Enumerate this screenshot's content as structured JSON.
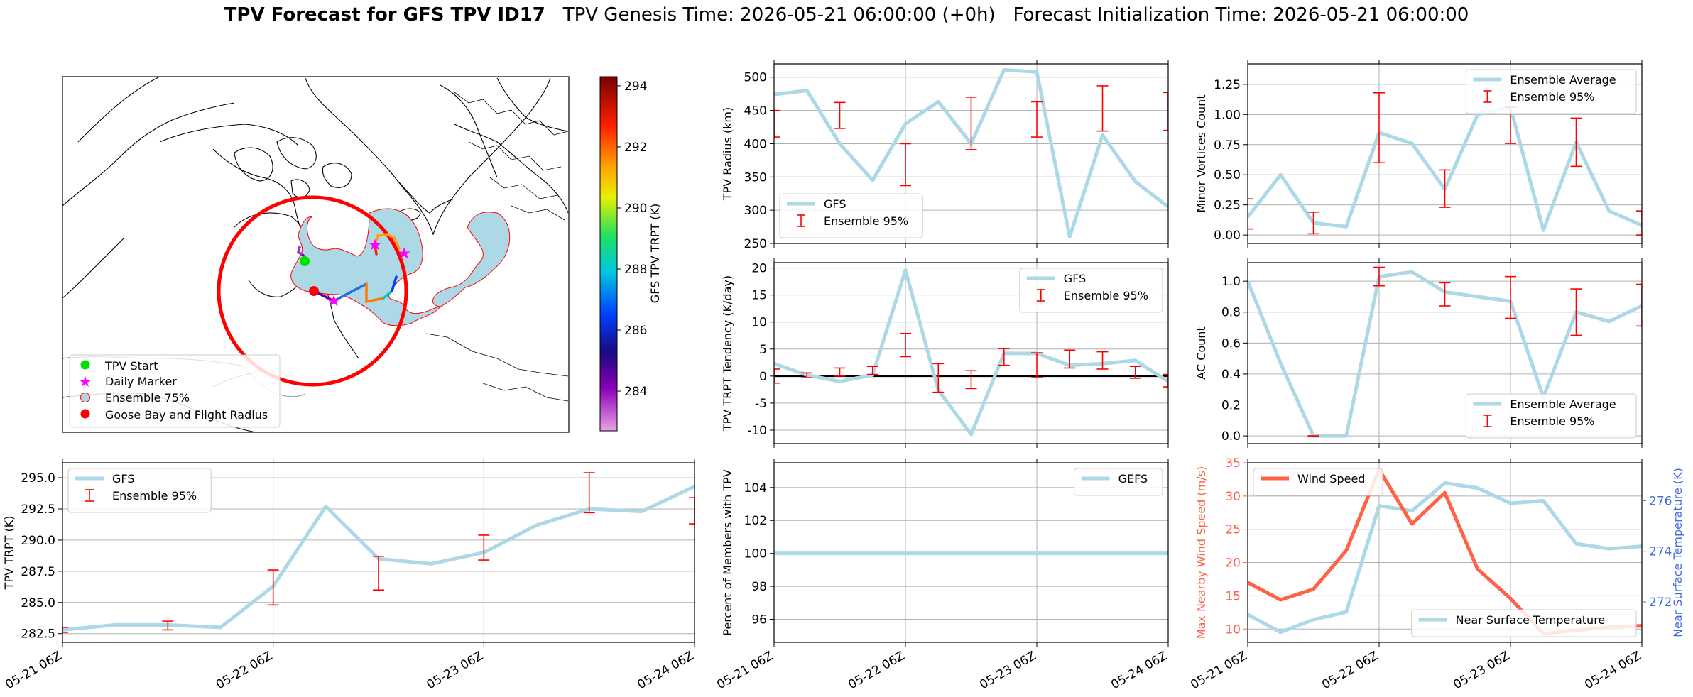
{
  "header": {
    "title_bold": "TPV Forecast for GFS TPV ID17",
    "genesis": "TPV Genesis Time: 2026-05-21 06:00:00 (+0h)",
    "init": "Forecast Initialization Time: 2026-05-21 06:00:00"
  },
  "colors": {
    "gfs": "#add8e6",
    "ensemble": "#ff0000",
    "wind": "#ff6347",
    "temp_axis": "#4169e1"
  },
  "map": {
    "legend": [
      "TPV Start",
      "Daily Marker",
      "Ensemble 75%",
      "Goose Bay and Flight Radius"
    ],
    "colorbar": {
      "label": "GFS TPV TRPT (K)",
      "ticks": [
        284,
        286,
        288,
        290,
        292,
        294
      ],
      "range": [
        282.7,
        294.3
      ]
    }
  },
  "x_ticks": [
    "05-21 06Z",
    "05-22 06Z",
    "05-23 06Z",
    "05-24 06Z"
  ],
  "chart_data": [
    {
      "id": "radius",
      "type": "line",
      "ylabel": "TPV Radius (km)",
      "ylim": [
        250,
        520
      ],
      "yticks": [
        250,
        300,
        350,
        400,
        450,
        500
      ],
      "legend": "lower-left",
      "legend_labels": [
        "GFS",
        "Ensemble 95%"
      ],
      "x": [
        0,
        0.25,
        0.5,
        0.75,
        1.0,
        1.25,
        1.5,
        1.75,
        2.0,
        2.25,
        2.5,
        2.75,
        3.0
      ],
      "series": [
        {
          "name": "GFS",
          "values": [
            474,
            480,
            400,
            345,
            430,
            463,
            400,
            511,
            508,
            260,
            413,
            343,
            305
          ]
        }
      ],
      "errorbars": [
        {
          "x": 0.0,
          "lo": 410,
          "hi": 450
        },
        {
          "x": 0.5,
          "lo": 423,
          "hi": 462
        },
        {
          "x": 1.0,
          "lo": 337,
          "hi": 400
        },
        {
          "x": 1.5,
          "lo": 391,
          "hi": 470
        },
        {
          "x": 2.0,
          "lo": 410,
          "hi": 463
        },
        {
          "x": 2.5,
          "lo": 419,
          "hi": 487
        },
        {
          "x": 3.0,
          "lo": 420,
          "hi": 477
        }
      ]
    },
    {
      "id": "minor",
      "type": "line",
      "ylabel": "Minor Vortices Count",
      "ylim": [
        -0.07,
        1.42
      ],
      "yticks": [
        0.0,
        0.25,
        0.5,
        0.75,
        1.0,
        1.25
      ],
      "legend": "upper-right",
      "legend_labels": [
        "Ensemble Average",
        "Ensemble 95%"
      ],
      "x": [
        0,
        0.25,
        0.5,
        0.75,
        1.0,
        1.25,
        1.5,
        1.75,
        2.0,
        2.25,
        2.5,
        2.75,
        3.0
      ],
      "series": [
        {
          "name": "Ensemble Average",
          "values": [
            0.15,
            0.5,
            0.1,
            0.07,
            0.85,
            0.76,
            0.38,
            1.0,
            1.06,
            0.04,
            0.77,
            0.2,
            0.08
          ]
        }
      ],
      "errorbars": [
        {
          "x": 0.0,
          "lo": 0.05,
          "hi": 0.3
        },
        {
          "x": 0.5,
          "lo": 0.01,
          "hi": 0.19
        },
        {
          "x": 1.0,
          "lo": 0.6,
          "hi": 1.18
        },
        {
          "x": 1.5,
          "lo": 0.23,
          "hi": 0.54
        },
        {
          "x": 2.0,
          "lo": 0.76,
          "hi": 1.06
        },
        {
          "x": 2.5,
          "lo": 0.57,
          "hi": 0.97
        },
        {
          "x": 3.0,
          "lo": 0.0,
          "hi": 0.2
        }
      ]
    },
    {
      "id": "tendency",
      "type": "line",
      "ylabel": "TPV TRPT Tendency (K/day)",
      "ylim": [
        -12.5,
        21
      ],
      "yticks": [
        -10,
        -5,
        0,
        5,
        10,
        15,
        20
      ],
      "legend": "upper-right",
      "legend_labels": [
        "GFS",
        "Ensemble 95%"
      ],
      "zero_line": true,
      "x": [
        0,
        0.25,
        0.5,
        0.75,
        1.0,
        1.25,
        1.5,
        1.75,
        2.0,
        2.25,
        2.5,
        2.75,
        3.0
      ],
      "series": [
        {
          "name": "GFS",
          "values": [
            2.3,
            0.2,
            -1.0,
            0.2,
            19.6,
            -2.6,
            -10.8,
            4.2,
            4.2,
            2.0,
            2.3,
            2.9,
            -1.0
          ]
        }
      ],
      "errorbars": [
        {
          "x": 0.0,
          "lo": -1.3,
          "hi": 1.3
        },
        {
          "x": 0.25,
          "lo": -0.3,
          "hi": 0.6
        },
        {
          "x": 0.5,
          "lo": 0.0,
          "hi": 1.5
        },
        {
          "x": 0.75,
          "lo": 0.3,
          "hi": 1.8
        },
        {
          "x": 1.0,
          "lo": 3.6,
          "hi": 7.9
        },
        {
          "x": 1.25,
          "lo": -3.0,
          "hi": 2.3
        },
        {
          "x": 1.5,
          "lo": -2.3,
          "hi": 1.0
        },
        {
          "x": 1.75,
          "lo": 2.0,
          "hi": 5.1
        },
        {
          "x": 2.0,
          "lo": -0.3,
          "hi": 4.3
        },
        {
          "x": 2.25,
          "lo": 1.5,
          "hi": 4.8
        },
        {
          "x": 2.5,
          "lo": 1.3,
          "hi": 4.5
        },
        {
          "x": 2.75,
          "lo": -0.4,
          "hi": 1.8
        },
        {
          "x": 3.0,
          "lo": -2.0,
          "hi": 0.3
        }
      ]
    },
    {
      "id": "ac",
      "type": "line",
      "ylabel": "AC Count",
      "ylim": [
        -0.05,
        1.12
      ],
      "yticks": [
        0.0,
        0.2,
        0.4,
        0.6,
        0.8,
        1.0
      ],
      "legend": "lower-right",
      "legend_labels": [
        "Ensemble Average",
        "Ensemble 95%"
      ],
      "x": [
        0,
        0.25,
        0.5,
        0.75,
        1.0,
        1.25,
        1.5,
        1.75,
        2.0,
        2.25,
        2.5,
        2.75,
        3.0
      ],
      "series": [
        {
          "name": "Ensemble Average",
          "values": [
            1.0,
            0.47,
            0.0,
            0.0,
            1.03,
            1.06,
            0.93,
            0.9,
            0.87,
            0.25,
            0.8,
            0.74,
            0.84
          ]
        }
      ],
      "errorbars": [
        {
          "x": 0.5,
          "lo": 0.0,
          "hi": 0.0
        },
        {
          "x": 1.0,
          "lo": 0.97,
          "hi": 1.09
        },
        {
          "x": 1.5,
          "lo": 0.84,
          "hi": 0.99
        },
        {
          "x": 2.0,
          "lo": 0.76,
          "hi": 1.03
        },
        {
          "x": 2.5,
          "lo": 0.65,
          "hi": 0.95
        },
        {
          "x": 3.0,
          "lo": 0.71,
          "hi": 0.98
        }
      ]
    },
    {
      "id": "trpt",
      "type": "line",
      "ylabel": "TPV TRPT (K)",
      "ylim": [
        281.8,
        296.2
      ],
      "yticks": [
        282.5,
        285.0,
        287.5,
        290.0,
        292.5,
        295.0
      ],
      "legend": "upper-left",
      "legend_labels": [
        "GFS",
        "Ensemble 95%"
      ],
      "x": [
        0,
        0.25,
        0.5,
        0.75,
        1.0,
        1.25,
        1.5,
        1.75,
        2.0,
        2.25,
        2.5,
        2.75,
        3.0
      ],
      "series": [
        {
          "name": "GFS",
          "values": [
            282.8,
            283.2,
            283.2,
            283.0,
            286.3,
            292.7,
            288.5,
            288.1,
            289.0,
            291.2,
            292.5,
            292.3,
            294.3
          ]
        }
      ],
      "errorbars": [
        {
          "x": 0.0,
          "lo": 282.6,
          "hi": 283.0
        },
        {
          "x": 0.5,
          "lo": 282.8,
          "hi": 283.5
        },
        {
          "x": 1.0,
          "lo": 284.8,
          "hi": 287.6
        },
        {
          "x": 1.5,
          "lo": 286.0,
          "hi": 288.7
        },
        {
          "x": 2.0,
          "lo": 288.4,
          "hi": 290.4
        },
        {
          "x": 2.5,
          "lo": 292.2,
          "hi": 295.4
        },
        {
          "x": 3.0,
          "lo": 291.3,
          "hi": 293.4
        }
      ]
    },
    {
      "id": "members",
      "type": "line",
      "ylabel": "Percent of Members with TPV",
      "ylim": [
        94.6,
        105.5
      ],
      "yticks": [
        96,
        98,
        100,
        102,
        104
      ],
      "legend": "upper-right",
      "legend_labels": [
        "GEFS"
      ],
      "x": [
        0,
        3.0
      ],
      "series": [
        {
          "name": "GEFS",
          "values": [
            100,
            100
          ]
        }
      ],
      "errorbars": []
    },
    {
      "id": "wind",
      "type": "line",
      "ylabel": "Max Nearby Wind Speed (m/s)",
      "ylim": [
        8,
        35
      ],
      "yticks": [
        10,
        15,
        20,
        25,
        30,
        35
      ],
      "legend": "upper-left",
      "legend_labels": [
        "Wind Speed"
      ],
      "x": [
        0,
        0.25,
        0.5,
        0.75,
        1.0,
        1.25,
        1.5,
        1.75,
        2.0,
        2.25,
        2.5,
        2.75,
        3.0
      ],
      "series": [
        {
          "name": "Wind Speed",
          "values": [
            17,
            14.4,
            16,
            21.8,
            34,
            25.8,
            30.5,
            19,
            14.6,
            9.3,
            9.8,
            10.3,
            10.5
          ]
        }
      ],
      "errorbars": [],
      "ylabel2": "Near Surface Temperature (K)",
      "ylim2": [
        270.4,
        277.5
      ],
      "yticks2": [
        272,
        274,
        276
      ],
      "legend2": "lower-right",
      "legend2_labels": [
        "Near Surface Temperature"
      ],
      "series2": [
        {
          "name": "Near Surface Temperature",
          "values": [
            271.5,
            270.8,
            271.3,
            271.6,
            275.8,
            275.6,
            276.7,
            276.5,
            275.9,
            276.0,
            274.3,
            274.1,
            274.2
          ]
        }
      ]
    }
  ]
}
